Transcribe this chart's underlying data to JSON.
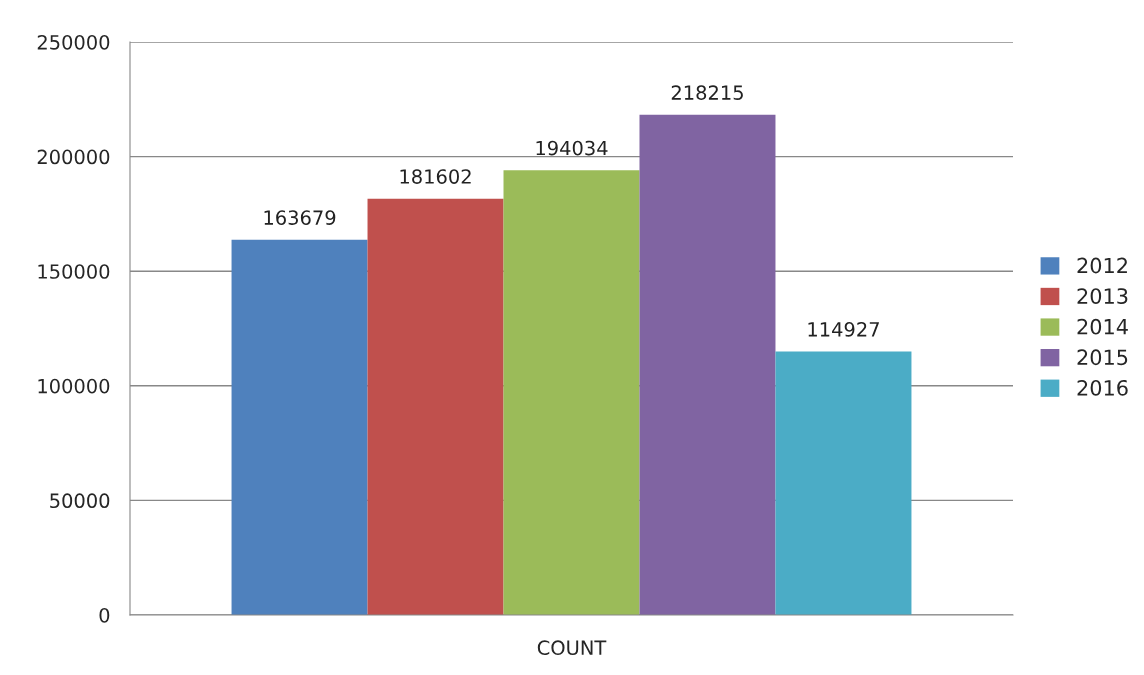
{
  "chart_data": {
    "type": "bar",
    "categories": [
      "COUNT"
    ],
    "series": [
      {
        "name": "2012",
        "color": "#4f81bd",
        "values": [
          163679
        ]
      },
      {
        "name": "2013",
        "color": "#c0504d",
        "values": [
          181602
        ]
      },
      {
        "name": "2014",
        "color": "#9bbb59",
        "values": [
          194034
        ]
      },
      {
        "name": "2015",
        "color": "#8064a2",
        "values": [
          218215
        ]
      },
      {
        "name": "2016",
        "color": "#4bacc6",
        "values": [
          114927
        ]
      }
    ],
    "ylim": [
      0,
      250000
    ],
    "yticks": [
      0,
      50000,
      100000,
      150000,
      200000,
      250000
    ],
    "grid": "y",
    "legend": "right",
    "data_labels": true
  }
}
